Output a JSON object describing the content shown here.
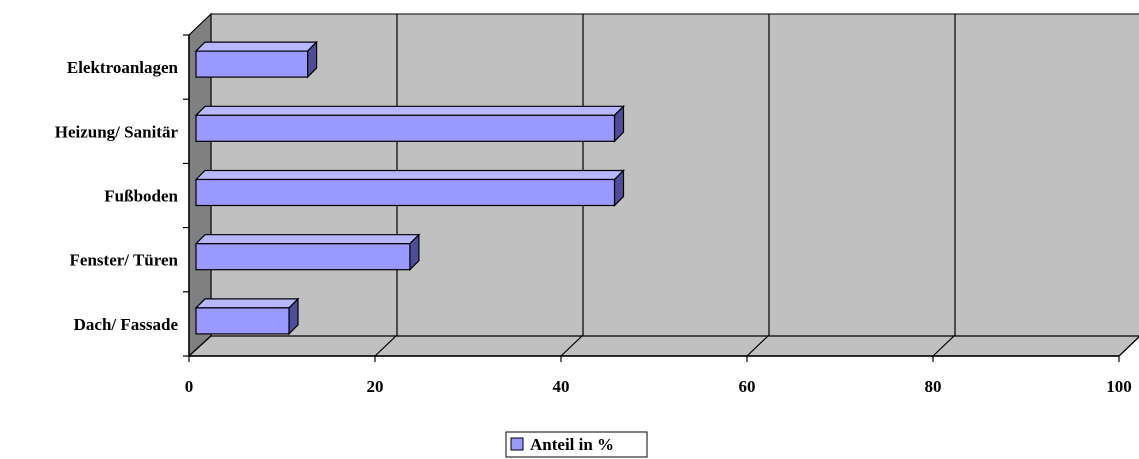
{
  "chart_data": {
    "type": "bar",
    "orientation": "horizontal",
    "style": "3d",
    "categories": [
      "Elektroanlagen",
      "Heizung/ Sanitär",
      "Fußboden",
      "Fenster/ Türen",
      "Dach/ Fassade"
    ],
    "series": [
      {
        "name": "Anteil in %",
        "values": [
          12,
          45,
          45,
          23,
          10
        ]
      }
    ],
    "x_ticks": [
      "0",
      "20",
      "40",
      "60",
      "80",
      "100"
    ],
    "xlim": [
      0,
      100
    ],
    "title": "",
    "xlabel": "",
    "ylabel": "",
    "grid": "vertical",
    "legend_position": "bottom-center"
  },
  "colors": {
    "bar_front": "#9999ff",
    "bar_top": "#b7b7ff",
    "bar_side": "#4d4d99",
    "plot_back": "#c0c0c0",
    "plot_floor": "#c0c0c0",
    "side_wall": "#808080"
  },
  "legend": {
    "label": "Anteil in %"
  }
}
